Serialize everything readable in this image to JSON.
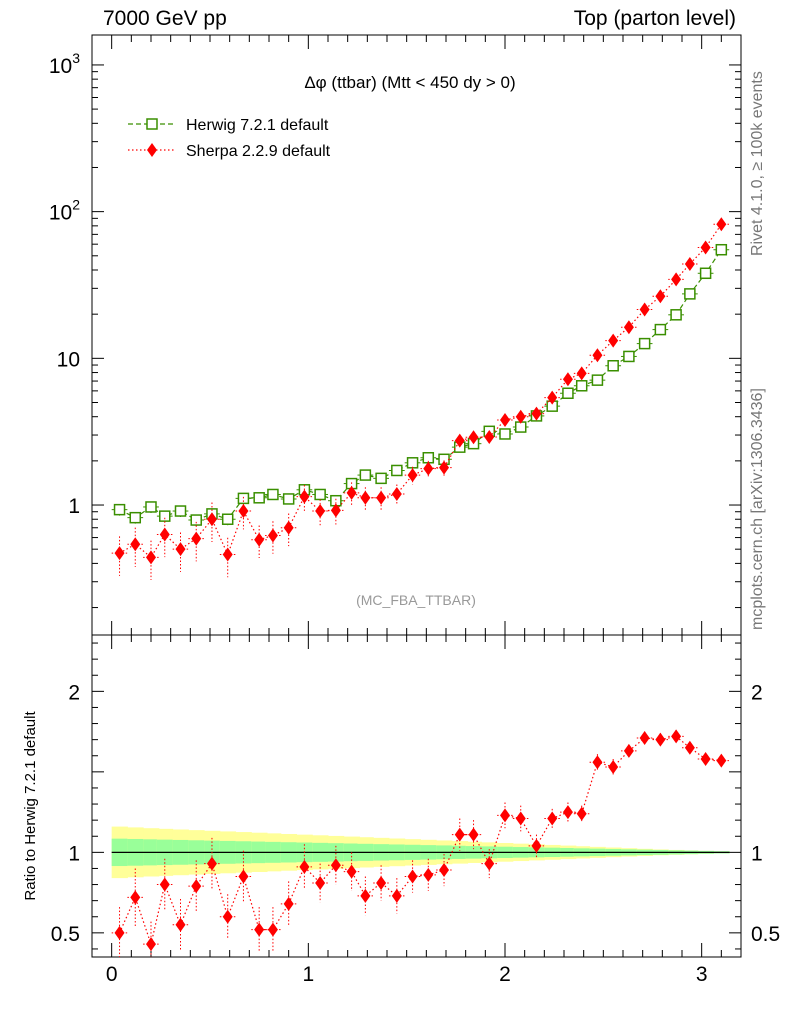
{
  "header": {
    "left": "7000 GeV pp",
    "right": "Top (parton level)"
  },
  "side_labels": {
    "rivet": "Rivet 4.1.0, ≥ 100k events",
    "mcplots": "mcplots.cern.ch [arXiv:1306.3436]"
  },
  "chart_data": {
    "type": "line",
    "title": "Δφ (ttbar) (Mtt < 450 dy > 0)",
    "watermark": "(MC_FBA_TTBAR)",
    "xlabel": "",
    "xlim": [
      -0.1,
      3.2
    ],
    "xticks": [
      "0",
      "1",
      "2",
      "3"
    ],
    "main": {
      "yscale": "log",
      "ylim": [
        0.13,
        1600
      ],
      "yticks": [
        "1",
        "10",
        "10²",
        "10³"
      ]
    },
    "ratio": {
      "ylabel": "Ratio to Herwig 7.2.1 default",
      "ylim": [
        0.35,
        2.35
      ],
      "yticks": [
        "0.5",
        "1",
        "2"
      ],
      "band_inner_halfwidth": [
        0.085,
        0.083,
        0.081,
        0.079,
        0.077,
        0.075,
        0.073,
        0.071,
        0.069,
        0.067,
        0.065,
        0.063,
        0.061,
        0.059,
        0.057,
        0.055,
        0.053,
        0.051,
        0.049,
        0.047,
        0.045,
        0.043,
        0.041,
        0.039,
        0.037,
        0.035,
        0.033,
        0.031,
        0.029,
        0.027,
        0.025,
        0.023,
        0.021,
        0.019,
        0.017,
        0.015,
        0.013,
        0.011,
        0.009,
        0.007
      ],
      "band_outer_halfwidth": [
        0.16,
        0.155,
        0.15,
        0.146,
        0.142,
        0.138,
        0.134,
        0.13,
        0.126,
        0.122,
        0.118,
        0.114,
        0.11,
        0.106,
        0.102,
        0.098,
        0.094,
        0.09,
        0.086,
        0.082,
        0.078,
        0.074,
        0.07,
        0.066,
        0.062,
        0.058,
        0.054,
        0.05,
        0.046,
        0.042,
        0.038,
        0.034,
        0.03,
        0.026,
        0.022,
        0.018,
        0.015,
        0.012,
        0.009,
        0.006
      ]
    },
    "x": [
      0.04,
      0.12,
      0.2,
      0.27,
      0.35,
      0.43,
      0.51,
      0.59,
      0.67,
      0.75,
      0.82,
      0.9,
      0.98,
      1.06,
      1.14,
      1.22,
      1.29,
      1.37,
      1.45,
      1.53,
      1.61,
      1.69,
      1.77,
      1.84,
      1.92,
      2.0,
      2.08,
      2.16,
      2.24,
      2.32,
      2.39,
      2.47,
      2.55,
      2.63,
      2.71,
      2.79,
      2.87,
      2.94,
      3.02,
      3.1
    ],
    "series": [
      {
        "name": "Herwig 7.2.1 default",
        "color": "#3a8f00",
        "marker": "open-square",
        "linestyle": "dashed",
        "values": [
          0.93,
          0.82,
          0.97,
          0.84,
          0.91,
          0.79,
          0.87,
          0.8,
          1.11,
          1.12,
          1.18,
          1.1,
          1.27,
          1.18,
          1.07,
          1.4,
          1.6,
          1.52,
          1.72,
          1.94,
          2.1,
          2.05,
          2.48,
          2.62,
          3.18,
          3.05,
          3.4,
          4.05,
          4.72,
          5.78,
          6.5,
          7.1,
          8.9,
          10.3,
          12.6,
          15.7,
          19.8,
          27.5,
          38.0,
          55.0
        ],
        "rel_err": [
          0.09,
          0.09,
          0.09,
          0.09,
          0.09,
          0.09,
          0.09,
          0.09,
          0.08,
          0.08,
          0.08,
          0.08,
          0.08,
          0.08,
          0.08,
          0.07,
          0.07,
          0.07,
          0.07,
          0.07,
          0.06,
          0.06,
          0.06,
          0.06,
          0.06,
          0.05,
          0.05,
          0.05,
          0.05,
          0.05,
          0.04,
          0.04,
          0.04,
          0.04,
          0.04,
          0.03,
          0.03,
          0.03,
          0.03,
          0.03
        ]
      },
      {
        "name": "Sherpa 2.2.9 default",
        "color": "#ff0000",
        "marker": "filled-diamond",
        "linestyle": "dotted",
        "values": [
          0.47,
          0.54,
          0.44,
          0.63,
          0.5,
          0.59,
          0.8,
          0.46,
          0.91,
          0.58,
          0.62,
          0.7,
          1.14,
          0.91,
          0.92,
          1.21,
          1.12,
          1.12,
          1.19,
          1.6,
          1.77,
          1.8,
          2.75,
          2.9,
          2.91,
          3.8,
          4.0,
          4.2,
          5.4,
          7.2,
          7.9,
          10.5,
          13.2,
          16.3,
          21.5,
          26.5,
          34.5,
          44.0,
          57.0,
          82.0
        ],
        "rel_err": [
          0.3,
          0.3,
          0.3,
          0.3,
          0.3,
          0.3,
          0.3,
          0.3,
          0.25,
          0.25,
          0.25,
          0.25,
          0.2,
          0.2,
          0.2,
          0.18,
          0.18,
          0.18,
          0.16,
          0.14,
          0.13,
          0.12,
          0.1,
          0.1,
          0.09,
          0.08,
          0.08,
          0.07,
          0.06,
          0.05,
          0.05,
          0.04,
          0.04,
          0.03,
          0.03,
          0.03,
          0.03,
          0.02,
          0.02,
          0.02
        ]
      }
    ],
    "ratio_values": [
      0.5,
      0.72,
      0.43,
      0.8,
      0.55,
      0.79,
      0.93,
      0.6,
      0.85,
      0.52,
      0.52,
      0.68,
      0.91,
      0.81,
      0.92,
      0.88,
      0.73,
      0.81,
      0.73,
      0.85,
      0.86,
      0.89,
      1.11,
      1.11,
      0.93,
      1.23,
      1.21,
      1.04,
      1.21,
      1.25,
      1.24,
      1.56,
      1.53,
      1.63,
      1.71,
      1.7,
      1.72,
      1.65,
      1.58,
      1.57
    ],
    "ratio_err": [
      0.16,
      0.18,
      0.14,
      0.16,
      0.16,
      0.16,
      0.16,
      0.14,
      0.16,
      0.14,
      0.14,
      0.14,
      0.14,
      0.12,
      0.12,
      0.12,
      0.12,
      0.11,
      0.11,
      0.1,
      0.1,
      0.1,
      0.1,
      0.09,
      0.09,
      0.08,
      0.08,
      0.07,
      0.06,
      0.06,
      0.05,
      0.05,
      0.05,
      0.04,
      0.04,
      0.04,
      0.04,
      0.03,
      0.03,
      0.03
    ]
  }
}
